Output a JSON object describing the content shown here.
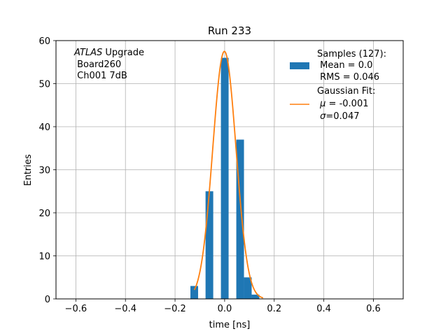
{
  "chart_data": {
    "type": "bar",
    "title": "Run 233",
    "xlabel": "time [ns]",
    "ylabel": "Entries",
    "xlim": [
      -0.68,
      0.72
    ],
    "ylim": [
      0,
      60
    ],
    "xticks": [
      -0.6,
      -0.4,
      -0.2,
      0.0,
      0.2,
      0.4,
      0.6
    ],
    "xtick_labels": [
      "−0.6",
      "−0.4",
      "−0.2",
      "0.0",
      "0.2",
      "0.4",
      "0.6"
    ],
    "yticks": [
      0,
      10,
      20,
      30,
      40,
      50,
      60
    ],
    "ytick_labels": [
      "0",
      "10",
      "20",
      "30",
      "40",
      "50",
      "60"
    ],
    "grid": true,
    "legend_position": "top-right",
    "histogram": {
      "bin_edges": [
        -0.138,
        -0.107,
        -0.077,
        -0.046,
        -0.015,
        0.016,
        0.047,
        0.078,
        0.109,
        0.14,
        0.171
      ],
      "counts": [
        3,
        0,
        25,
        0,
        56,
        0,
        37,
        5,
        1,
        0
      ],
      "color": "#1f77b4"
    },
    "fit": {
      "type": "gaussian",
      "amplitude": 57.5,
      "mu": -0.001,
      "sigma": 0.047,
      "x_range": [
        -0.122,
        0.155
      ],
      "color": "#ff7f0e"
    },
    "annotation": {
      "line1_italic": "ATLAS",
      "line1_rest": " Upgrade",
      "line2": " Board260",
      "line3": " Ch001 7dB"
    },
    "legend": {
      "samples": [
        "Samples (127):",
        " Mean = 0.0",
        " RMS = 0.046"
      ],
      "fit_header": "Gaussian Fit:",
      "fit_mu_symbol": "μ",
      "fit_mu_rest": " = -0.001",
      "fit_sigma_symbol": "σ",
      "fit_sigma_rest": "=0.047"
    }
  }
}
